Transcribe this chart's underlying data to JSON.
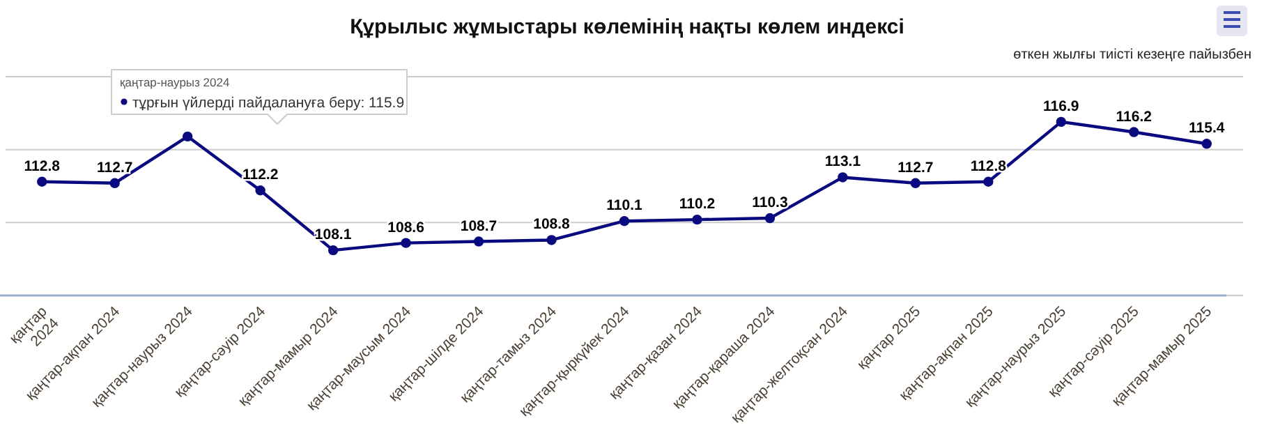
{
  "chart_data": {
    "type": "line",
    "title": "Құрылыс жұмыстары көлемінің нақты көлем индексі",
    "subtitle": "өткен жылғы тиісті кезеңге пайызбен",
    "categories": [
      "қаңтар 2024",
      "қаңтар-ақпан 2024",
      "қаңтар-наурыз 2024",
      "қаңтар-сәуір 2024",
      "қаңтар-мамыр 2024",
      "қаңтар-маусым 2024",
      "қаңтар-шілде 2024",
      "қаңтар-тамыз 2024",
      "қаңтар-қыркүйек 2024",
      "қаңтар-қазан 2024",
      "қаңтар-қараша 2024",
      "қаңтар-желтоқсан 2024",
      "қаңтар 2025",
      "қаңтар-ақпан 2025",
      "қаңтар-наурыз 2025",
      "қаңтар-сәуір 2025",
      "қаңтар-мамыр 2025"
    ],
    "series": [
      {
        "color": "#0a0a80",
        "values": [
          112.8,
          112.7,
          115.9,
          112.2,
          108.1,
          108.6,
          108.7,
          108.8,
          110.1,
          110.2,
          110.3,
          113.1,
          112.7,
          112.8,
          116.9,
          116.2,
          115.4
        ],
        "value_labels": [
          "112.8",
          "112.7",
          null,
          "112.2",
          "108.1",
          "108.6",
          "108.7",
          "108.8",
          "110.1",
          "110.2",
          "110.3",
          "113.1",
          "112.7",
          "112.8",
          "116.9",
          "116.2",
          "115.4"
        ]
      }
    ],
    "annotations": [
      "қаңтар-наурыз 2024",
      "тұрғын үйлерді пайдалануға беру: 115.9"
    ],
    "ylim": [
      105,
      120
    ],
    "yticks": [
      {
        "value": 105,
        "label": null
      },
      {
        "value": 110,
        "label": null
      },
      {
        "value": 115,
        "label": null
      },
      {
        "value": 120,
        "label": null
      }
    ],
    "tick_labels": "x",
    "grid": "y",
    "marker": "circle",
    "line_style": "solid"
  }
}
